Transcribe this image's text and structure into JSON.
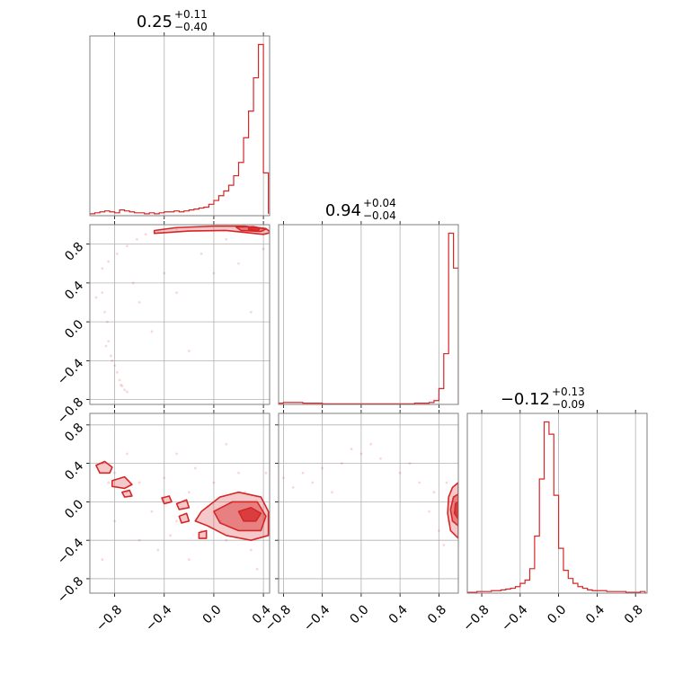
{
  "chart_data": {
    "type": "corner",
    "color": "#d62728",
    "axis_ticks": [
      "−0.8",
      "−0.4",
      "0.0",
      "0.4",
      "0.8"
    ],
    "tick_values": [
      -0.8,
      -0.4,
      0.0,
      0.4,
      0.8
    ],
    "grid": true,
    "parameters": [
      {
        "range": [
          -1.0,
          0.45
        ],
        "title": {
          "median": "0.25",
          "plus": "+0.11",
          "minus": "−0.40"
        }
      },
      {
        "range": [
          -0.85,
          1.0
        ],
        "title": {
          "median": "0.94",
          "plus": "+0.04",
          "minus": "−0.04"
        }
      },
      {
        "range": [
          -0.95,
          0.92
        ],
        "title": {
          "median": "−0.12",
          "plus": "+0.13",
          "minus": "−0.09"
        }
      }
    ],
    "histograms": [
      {
        "param": 0,
        "bin_edges": [
          -1.0,
          -0.96,
          -0.92,
          -0.88,
          -0.84,
          -0.8,
          -0.76,
          -0.72,
          -0.68,
          -0.64,
          -0.6,
          -0.56,
          -0.52,
          -0.48,
          -0.44,
          -0.4,
          -0.36,
          -0.32,
          -0.28,
          -0.24,
          -0.2,
          -0.16,
          -0.12,
          -0.08,
          -0.04,
          0.0,
          0.04,
          0.08,
          0.12,
          0.16,
          0.2,
          0.24,
          0.28,
          0.32,
          0.36,
          0.4,
          0.44
        ],
        "counts": [
          2,
          3,
          4,
          5,
          4,
          3,
          6,
          5,
          4,
          3,
          3,
          2,
          3,
          2,
          3,
          4,
          4,
          5,
          4,
          5,
          6,
          7,
          8,
          9,
          12,
          16,
          21,
          26,
          32,
          42,
          56,
          82,
          110,
          145,
          180,
          45,
          2
        ]
      },
      {
        "param": 1,
        "bin_edges": [
          -0.85,
          -0.8,
          -0.75,
          -0.7,
          -0.65,
          -0.6,
          -0.55,
          -0.5,
          -0.45,
          -0.4,
          -0.35,
          -0.3,
          -0.25,
          -0.2,
          -0.15,
          -0.1,
          -0.05,
          0.0,
          0.05,
          0.1,
          0.15,
          0.2,
          0.25,
          0.3,
          0.35,
          0.4,
          0.45,
          0.5,
          0.55,
          0.6,
          0.65,
          0.7,
          0.75,
          0.8,
          0.85,
          0.9,
          0.95,
          1.0
        ],
        "counts": [
          2,
          3,
          3,
          3,
          3,
          2,
          2,
          2,
          2,
          1,
          1,
          1,
          1,
          1,
          1,
          1,
          1,
          1,
          1,
          1,
          1,
          1,
          1,
          1,
          1,
          1,
          1,
          1,
          2,
          2,
          2,
          3,
          6,
          25,
          80,
          270,
          215
        ]
      },
      {
        "param": 2,
        "bin_edges": [
          -0.95,
          -0.9,
          -0.85,
          -0.8,
          -0.75,
          -0.7,
          -0.65,
          -0.6,
          -0.55,
          -0.5,
          -0.45,
          -0.4,
          -0.35,
          -0.3,
          -0.25,
          -0.2,
          -0.15,
          -0.1,
          -0.05,
          0.0,
          0.05,
          0.1,
          0.15,
          0.2,
          0.25,
          0.3,
          0.35,
          0.4,
          0.45,
          0.5,
          0.55,
          0.6,
          0.65,
          0.7,
          0.75,
          0.8,
          0.85,
          0.9
        ],
        "counts": [
          1,
          1,
          2,
          2,
          2,
          3,
          3,
          4,
          5,
          6,
          8,
          12,
          16,
          30,
          70,
          140,
          210,
          195,
          120,
          55,
          28,
          18,
          12,
          8,
          6,
          4,
          3,
          3,
          3,
          2,
          2,
          2,
          2,
          1,
          1,
          1,
          2
        ]
      }
    ],
    "scatter_panels": [
      {
        "x_param": 0,
        "y_param": 1,
        "samples": [
          [
            -0.9,
            0.3
          ],
          [
            -0.88,
            0.1
          ],
          [
            -0.86,
            0.0
          ],
          [
            -0.85,
            -0.2
          ],
          [
            -0.83,
            -0.35
          ],
          [
            -0.8,
            -0.45
          ],
          [
            -0.78,
            -0.52
          ],
          [
            -0.76,
            -0.6
          ],
          [
            -0.74,
            -0.66
          ],
          [
            -0.72,
            -0.7
          ],
          [
            -0.9,
            0.55
          ],
          [
            -0.85,
            0.62
          ],
          [
            -0.78,
            0.7
          ],
          [
            -0.7,
            0.78
          ],
          [
            -0.62,
            0.85
          ],
          [
            -0.55,
            0.9
          ],
          [
            -0.45,
            0.92
          ],
          [
            -0.3,
            0.95
          ],
          [
            -0.6,
            0.2
          ],
          [
            -0.5,
            -0.1
          ],
          [
            -0.3,
            0.3
          ],
          [
            -0.2,
            -0.3
          ],
          [
            0.0,
            0.5
          ],
          [
            0.2,
            0.6
          ],
          [
            0.3,
            0.1
          ],
          [
            0.4,
            0.75
          ],
          [
            -0.95,
            0.25
          ],
          [
            -0.82,
            -0.4
          ],
          [
            -0.75,
            -0.65
          ],
          [
            -0.7,
            -0.72
          ],
          [
            -0.1,
            0.7
          ],
          [
            0.1,
            0.85
          ],
          [
            -0.4,
            0.5
          ],
          [
            -0.65,
            0.4
          ],
          [
            -0.87,
            -0.25
          ]
        ],
        "contours": [
          {
            "level": "outer",
            "points": [
              [
                -0.48,
                0.94
              ],
              [
                -0.3,
                0.97
              ],
              [
                0.0,
                0.985
              ],
              [
                0.25,
                0.985
              ],
              [
                0.42,
                0.96
              ],
              [
                0.46,
                0.92
              ],
              [
                0.4,
                0.9
              ],
              [
                0.1,
                0.94
              ],
              [
                -0.2,
                0.935
              ],
              [
                -0.48,
                0.91
              ]
            ]
          },
          {
            "level": "middle",
            "points": [
              [
                0.18,
                0.975
              ],
              [
                0.32,
                0.98
              ],
              [
                0.42,
                0.955
              ],
              [
                0.38,
                0.93
              ],
              [
                0.22,
                0.94
              ]
            ]
          },
          {
            "level": "inner",
            "points": [
              [
                0.28,
                0.97
              ],
              [
                0.37,
                0.965
              ],
              [
                0.36,
                0.94
              ],
              [
                0.28,
                0.95
              ]
            ]
          }
        ]
      },
      {
        "x_param": 0,
        "y_param": 2,
        "samples": [
          [
            -0.9,
            0.4
          ],
          [
            -0.85,
            0.2
          ],
          [
            -0.8,
            0.3
          ],
          [
            -0.7,
            0.1
          ],
          [
            -0.6,
            0.2
          ],
          [
            -0.5,
            -0.1
          ],
          [
            -0.4,
            0.25
          ],
          [
            -0.3,
            -0.2
          ],
          [
            -0.2,
            0.1
          ],
          [
            -0.1,
            -0.3
          ],
          [
            0.0,
            0.2
          ],
          [
            0.1,
            -0.4
          ],
          [
            0.2,
            0.3
          ],
          [
            0.3,
            -0.5
          ],
          [
            0.4,
            0.0
          ],
          [
            -0.6,
            -0.4
          ],
          [
            -0.8,
            -0.2
          ],
          [
            -0.3,
            0.5
          ],
          [
            0.1,
            0.6
          ],
          [
            -0.2,
            -0.6
          ],
          [
            0.35,
            -0.7
          ],
          [
            -0.45,
            -0.5
          ],
          [
            -0.7,
            0.5
          ],
          [
            0.25,
            0.1
          ],
          [
            -0.05,
            -0.05
          ],
          [
            -0.15,
            0.35
          ],
          [
            0.05,
            -0.2
          ],
          [
            -0.35,
            -0.35
          ],
          [
            0.42,
            0.3
          ],
          [
            -0.9,
            -0.6
          ]
        ],
        "contours": [
          {
            "level": "outer",
            "points": [
              [
                -0.1,
                -0.1
              ],
              [
                0.05,
                0.05
              ],
              [
                0.2,
                0.1
              ],
              [
                0.38,
                0.05
              ],
              [
                0.44,
                -0.1
              ],
              [
                0.44,
                -0.35
              ],
              [
                0.3,
                -0.4
              ],
              [
                0.1,
                -0.35
              ],
              [
                -0.05,
                -0.25
              ],
              [
                -0.15,
                -0.2
              ]
            ]
          },
          {
            "level": "middle",
            "points": [
              [
                0.0,
                -0.1
              ],
              [
                0.15,
                0.0
              ],
              [
                0.35,
                0.0
              ],
              [
                0.42,
                -0.15
              ],
              [
                0.38,
                -0.3
              ],
              [
                0.2,
                -0.3
              ],
              [
                0.05,
                -0.22
              ]
            ]
          },
          {
            "level": "inner",
            "points": [
              [
                0.2,
                -0.1
              ],
              [
                0.3,
                -0.06
              ],
              [
                0.38,
                -0.12
              ],
              [
                0.34,
                -0.2
              ],
              [
                0.24,
                -0.2
              ]
            ]
          },
          {
            "level": "outer",
            "points": [
              [
                -0.95,
                0.38
              ],
              [
                -0.88,
                0.42
              ],
              [
                -0.82,
                0.36
              ],
              [
                -0.84,
                0.3
              ],
              [
                -0.92,
                0.3
              ]
            ]
          },
          {
            "level": "outer",
            "points": [
              [
                -0.82,
                0.22
              ],
              [
                -0.72,
                0.26
              ],
              [
                -0.66,
                0.18
              ],
              [
                -0.72,
                0.14
              ],
              [
                -0.82,
                0.16
              ]
            ]
          },
          {
            "level": "outer",
            "points": [
              [
                -0.74,
                0.1
              ],
              [
                -0.68,
                0.12
              ],
              [
                -0.66,
                0.06
              ],
              [
                -0.72,
                0.05
              ]
            ]
          },
          {
            "level": "outer",
            "points": [
              [
                -0.42,
                0.04
              ],
              [
                -0.36,
                0.06
              ],
              [
                -0.34,
                0.0
              ],
              [
                -0.4,
                -0.02
              ]
            ]
          },
          {
            "level": "outer",
            "points": [
              [
                -0.3,
                -0.02
              ],
              [
                -0.22,
                0.02
              ],
              [
                -0.2,
                -0.06
              ],
              [
                -0.28,
                -0.08
              ]
            ]
          },
          {
            "level": "outer",
            "points": [
              [
                -0.28,
                -0.15
              ],
              [
                -0.22,
                -0.12
              ],
              [
                -0.2,
                -0.2
              ],
              [
                -0.26,
                -0.22
              ]
            ]
          },
          {
            "level": "outer",
            "points": [
              [
                -0.12,
                -0.32
              ],
              [
                -0.06,
                -0.3
              ],
              [
                -0.06,
                -0.38
              ],
              [
                -0.12,
                -0.38
              ]
            ]
          }
        ]
      },
      {
        "x_param": 1,
        "y_param": 2,
        "samples": [
          [
            -0.6,
            0.3
          ],
          [
            -0.5,
            0.2
          ],
          [
            -0.4,
            0.35
          ],
          [
            -0.3,
            0.1
          ],
          [
            -0.2,
            0.4
          ],
          [
            0.0,
            0.5
          ],
          [
            0.2,
            0.45
          ],
          [
            0.4,
            0.3
          ],
          [
            0.6,
            0.2
          ],
          [
            0.7,
            -0.1
          ],
          [
            0.8,
            -0.3
          ],
          [
            0.85,
            -0.45
          ],
          [
            0.88,
            0.2
          ],
          [
            -0.7,
            0.15
          ],
          [
            -0.8,
            0.25
          ],
          [
            0.1,
            0.6
          ],
          [
            -0.1,
            0.55
          ],
          [
            0.5,
            0.4
          ],
          [
            0.75,
            0.1
          ],
          [
            0.9,
            -0.2
          ]
        ],
        "contours": [
          {
            "level": "outer",
            "points": [
              [
                0.94,
                0.15
              ],
              [
                1.0,
                0.2
              ],
              [
                1.0,
                -0.38
              ],
              [
                0.92,
                -0.3
              ],
              [
                0.89,
                -0.12
              ],
              [
                0.9,
                0.05
              ]
            ]
          },
          {
            "level": "middle",
            "points": [
              [
                0.95,
                0.05
              ],
              [
                1.0,
                0.08
              ],
              [
                1.0,
                -0.25
              ],
              [
                0.94,
                -0.2
              ],
              [
                0.92,
                -0.08
              ]
            ]
          },
          {
            "level": "inner",
            "points": [
              [
                0.97,
                -0.02
              ],
              [
                1.0,
                0.0
              ],
              [
                1.0,
                -0.18
              ],
              [
                0.96,
                -0.12
              ]
            ]
          }
        ]
      }
    ]
  }
}
